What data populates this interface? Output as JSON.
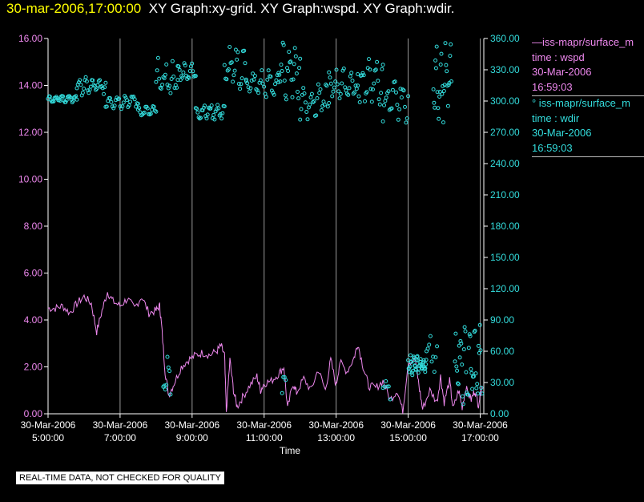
{
  "title": {
    "datetime": "30-mar-2006,17:00:00",
    "graphs": "XY Graph:xy-grid.  XY Graph:wspd.  XY Graph:wdir."
  },
  "notice": "REAL-TIME DATA, NOT CHECKED FOR QUALITY",
  "legend": [
    {
      "label": "—iss-mapr/surface_m",
      "time_label": "time : wspd",
      "date": "30-Mar-2006",
      "clock": "16:59:03",
      "color": "#ee88ee"
    },
    {
      "label": "° iss-mapr/surface_m",
      "time_label": "time : wdir",
      "date": "30-Mar-2006",
      "clock": "16:59:03",
      "color": "#33dddd"
    }
  ],
  "colors": {
    "wspd": "#ee88ee",
    "wdir": "#33dddd",
    "grid": "#999999",
    "axis": "#ffffff"
  },
  "chart_data": {
    "type": "line",
    "xlabel": "Time",
    "x_range_hours": [
      5.0,
      17.1
    ],
    "x_ticks": [
      {
        "hour": 5,
        "date": "30-Mar-2006",
        "time": "5:00:00"
      },
      {
        "hour": 7,
        "date": "30-Mar-2006",
        "time": "7:00:00"
      },
      {
        "hour": 9,
        "date": "30-Mar-2006",
        "time": "9:00:00"
      },
      {
        "hour": 11,
        "date": "30-Mar-2006",
        "time": "11:00:00"
      },
      {
        "hour": 13,
        "date": "30-Mar-2006",
        "time": "13:00:00"
      },
      {
        "hour": 15,
        "date": "30-Mar-2006",
        "time": "15:00:00"
      },
      {
        "hour": 17,
        "date": "30-Mar-2006",
        "time": "17:00:00"
      }
    ],
    "left_axis": {
      "label": "wspd",
      "range": [
        0,
        16
      ],
      "ticks": [
        "0.00",
        "2.00",
        "4.00",
        "6.00",
        "8.00",
        "10.00",
        "12.00",
        "14.00",
        "16.00"
      ]
    },
    "right_axis": {
      "label": "wdir",
      "range": [
        0,
        360
      ],
      "ticks": [
        "0.00",
        "30.00",
        "60.00",
        "90.00",
        "120.00",
        "150.00",
        "180.00",
        "210.00",
        "240.00",
        "270.00",
        "300.00",
        "330.00",
        "360.00"
      ]
    },
    "series": [
      {
        "name": "wspd",
        "style": "line",
        "axis": "left",
        "points": [
          [
            5.0,
            4.5
          ],
          [
            5.2,
            4.5
          ],
          [
            5.4,
            4.6
          ],
          [
            5.6,
            4.3
          ],
          [
            5.8,
            4.7
          ],
          [
            6.0,
            5.0
          ],
          [
            6.2,
            4.7
          ],
          [
            6.35,
            3.5
          ],
          [
            6.5,
            4.4
          ],
          [
            6.65,
            5.2
          ],
          [
            6.8,
            4.8
          ],
          [
            7.0,
            4.6
          ],
          [
            7.2,
            4.9
          ],
          [
            7.4,
            4.5
          ],
          [
            7.6,
            5.0
          ],
          [
            7.8,
            4.3
          ],
          [
            8.0,
            4.4
          ],
          [
            8.1,
            4.6
          ],
          [
            8.15,
            3.8
          ],
          [
            8.25,
            1.8
          ],
          [
            8.35,
            0.8
          ],
          [
            8.5,
            1.3
          ],
          [
            8.7,
            2.0
          ],
          [
            8.9,
            2.3
          ],
          [
            9.1,
            2.5
          ],
          [
            9.3,
            2.6
          ],
          [
            9.5,
            2.5
          ],
          [
            9.7,
            2.7
          ],
          [
            9.8,
            2.9
          ],
          [
            9.9,
            2.5
          ],
          [
            9.95,
            0.1
          ],
          [
            10.05,
            2.3
          ],
          [
            10.15,
            1.0
          ],
          [
            10.25,
            0.3
          ],
          [
            10.4,
            0.7
          ],
          [
            10.6,
            1.2
          ],
          [
            10.8,
            1.6
          ],
          [
            10.9,
            1.0
          ],
          [
            11.0,
            1.3
          ],
          [
            11.2,
            1.4
          ],
          [
            11.4,
            1.7
          ],
          [
            11.55,
            2.0
          ],
          [
            11.65,
            0.2
          ],
          [
            11.8,
            1.3
          ],
          [
            11.9,
            0.9
          ],
          [
            12.1,
            1.5
          ],
          [
            12.3,
            1.0
          ],
          [
            12.5,
            1.9
          ],
          [
            12.7,
            1.0
          ],
          [
            12.85,
            2.3
          ],
          [
            13.0,
            1.2
          ],
          [
            13.1,
            2.2
          ],
          [
            13.3,
            1.8
          ],
          [
            13.5,
            2.4
          ],
          [
            13.6,
            3.0
          ],
          [
            13.75,
            2.0
          ],
          [
            13.9,
            1.2
          ],
          [
            14.1,
            1.1
          ],
          [
            14.3,
            1.4
          ],
          [
            14.5,
            0.6
          ],
          [
            14.7,
            1.0
          ],
          [
            14.85,
            0.1
          ],
          [
            15.0,
            2.2
          ],
          [
            15.2,
            2.3
          ],
          [
            15.3,
            1.2
          ],
          [
            15.4,
            0.2
          ],
          [
            15.6,
            1.0
          ],
          [
            15.8,
            0.5
          ],
          [
            15.9,
            1.6
          ],
          [
            16.0,
            0.5
          ],
          [
            16.15,
            1.4
          ],
          [
            16.25,
            0.2
          ],
          [
            16.4,
            1.0
          ],
          [
            16.5,
            0.3
          ],
          [
            16.6,
            1.1
          ],
          [
            16.75,
            0.6
          ],
          [
            16.85,
            1.0
          ],
          [
            16.95,
            0.4
          ],
          [
            17.05,
            1.2
          ]
        ]
      },
      {
        "name": "wdir",
        "style": "scatter",
        "axis": "right",
        "segments": [
          {
            "from": 5.0,
            "to": 5.8,
            "center": 302,
            "amp": 4,
            "n": 32
          },
          {
            "from": 5.8,
            "to": 6.6,
            "center": 314,
            "amp": 9,
            "n": 30
          },
          {
            "from": 6.6,
            "to": 7.5,
            "center": 300,
            "amp": 8,
            "n": 30
          },
          {
            "from": 7.5,
            "to": 8.0,
            "center": 290,
            "amp": 6,
            "n": 18
          },
          {
            "from": 8.0,
            "to": 8.6,
            "center": 320,
            "amp": 22,
            "n": 22
          },
          {
            "from": 8.6,
            "to": 9.1,
            "center": 328,
            "amp": 10,
            "n": 20
          },
          {
            "from": 9.1,
            "to": 9.9,
            "center": 290,
            "amp": 10,
            "n": 30
          },
          {
            "from": 9.9,
            "to": 10.5,
            "center": 330,
            "amp": 28,
            "n": 22
          },
          {
            "from": 10.5,
            "to": 11.4,
            "center": 316,
            "amp": 16,
            "n": 30
          },
          {
            "from": 11.4,
            "to": 12.0,
            "center": 330,
            "amp": 30,
            "n": 26
          },
          {
            "from": 12.0,
            "to": 12.8,
            "center": 300,
            "amp": 22,
            "n": 28
          },
          {
            "from": 12.8,
            "to": 13.6,
            "center": 316,
            "amp": 16,
            "n": 28
          },
          {
            "from": 13.6,
            "to": 14.3,
            "center": 318,
            "amp": 26,
            "n": 26
          },
          {
            "from": 14.3,
            "to": 15.0,
            "center": 300,
            "amp": 22,
            "n": 24
          },
          {
            "from": 15.7,
            "to": 16.2,
            "center": 318,
            "amp": 40,
            "n": 28
          },
          {
            "from": 15.0,
            "to": 15.5,
            "center": 47,
            "amp": 10,
            "n": 40
          },
          {
            "from": 15.4,
            "to": 15.8,
            "center": 60,
            "amp": 25,
            "n": 12
          },
          {
            "from": 16.3,
            "to": 17.05,
            "center": 45,
            "amp": 45,
            "n": 40
          },
          {
            "from": 8.2,
            "to": 8.4,
            "center": 35,
            "amp": 25,
            "n": 8
          },
          {
            "from": 11.5,
            "to": 11.6,
            "center": 25,
            "amp": 15,
            "n": 4
          },
          {
            "from": 14.3,
            "to": 14.5,
            "center": 25,
            "amp": 15,
            "n": 6
          }
        ]
      }
    ]
  }
}
